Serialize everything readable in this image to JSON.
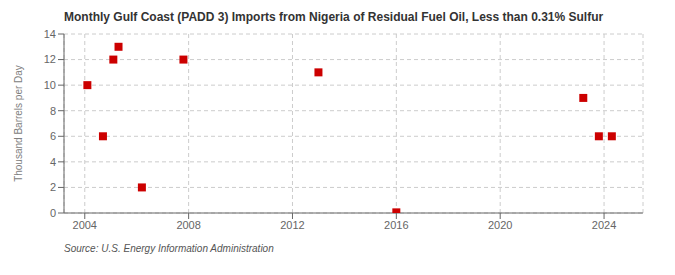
{
  "chart_data": {
    "type": "scatter",
    "title": "Monthly Gulf Coast (PADD 3) Imports from Nigeria of Residual Fuel Oil, Less than 0.31% Sulfur",
    "y_label": "Thousand Barrels per Day",
    "source": "Source: U.S. Energy Information Administration",
    "x": [
      2004.1,
      2004.7,
      2005.1,
      2005.3,
      2006.2,
      2007.8,
      2013.0,
      2016.0,
      2023.2,
      2023.8,
      2024.3
    ],
    "values": [
      10,
      6,
      12,
      13,
      2,
      12,
      11,
      0.05,
      9,
      6,
      6
    ],
    "color": "#cc0000",
    "marker": "square",
    "xlim": [
      2003.2,
      2025.5
    ],
    "ylim": [
      0,
      14
    ],
    "xticks": [
      2004,
      2008,
      2012,
      2016,
      2020,
      2024
    ],
    "yticks": [
      0,
      2,
      4,
      6,
      8,
      10,
      12,
      14
    ],
    "grid": true
  }
}
